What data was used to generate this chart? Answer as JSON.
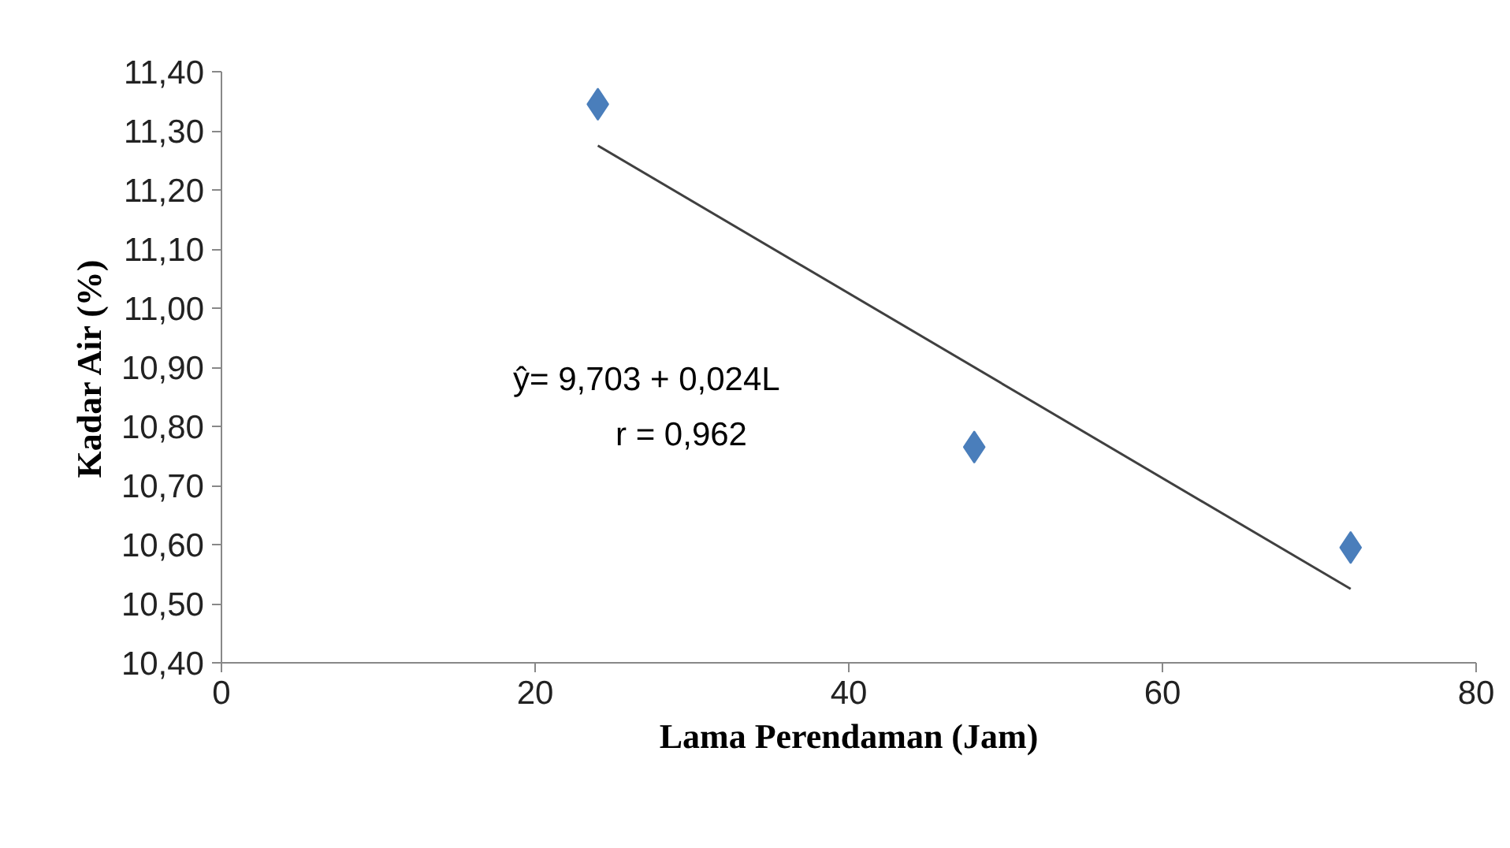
{
  "chart_data": {
    "type": "scatter",
    "xlabel": "Lama Perendaman (Jam)",
    "ylabel": "Kadar Air (%)",
    "x": [
      24,
      48,
      72
    ],
    "series": [
      {
        "color": "#4a7ebb",
        "marker": "diamond",
        "values": [
          11.345,
          10.765,
          10.595
        ]
      },
      {
        "type": "line",
        "color": "#404040",
        "marker": "none",
        "line_style": "solid",
        "x": [
          24,
          72
        ],
        "values": [
          11.275,
          10.525
        ]
      }
    ],
    "xlim": [
      0,
      80
    ],
    "xticks": [
      0,
      20,
      40,
      60,
      80
    ],
    "ylim": [
      10.4,
      11.4
    ],
    "yticks": [
      {
        "value": 10.4,
        "label": "10,40"
      },
      {
        "value": 10.5,
        "label": "10,50"
      },
      {
        "value": 10.6,
        "label": "10,60"
      },
      {
        "value": 10.7,
        "label": "10,70"
      },
      {
        "value": 10.8,
        "label": "10,80"
      },
      {
        "value": 10.9,
        "label": "10,90"
      },
      {
        "value": 11.0,
        "label": "11,00"
      },
      {
        "value": 11.1,
        "label": "11,10"
      },
      {
        "value": 11.2,
        "label": "11,20"
      },
      {
        "value": 11.3,
        "label": "11,30"
      },
      {
        "value": 11.4,
        "label": "11,40"
      }
    ],
    "grid": false,
    "annotations": [
      "ŷ= 9,703 + 0,024L",
      "r = 0,962"
    ]
  }
}
